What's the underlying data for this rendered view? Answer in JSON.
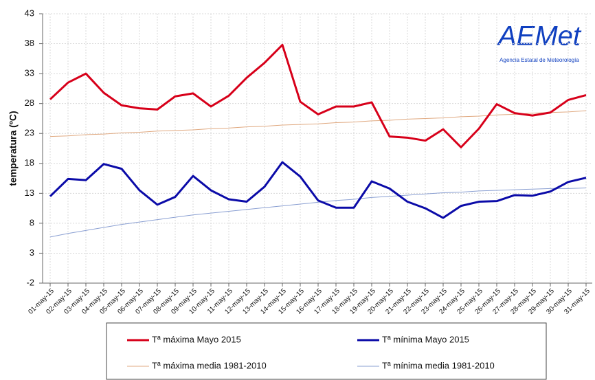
{
  "chart_data": {
    "type": "line",
    "y_label": "temperatura (ºC)",
    "logo_text": "AEMet",
    "logo_subtitle": "Agencia Estatal de Meteorología",
    "categories": [
      "01-may-15",
      "02-may-15",
      "03-may-15",
      "04-may-15",
      "05-may-15",
      "06-may-15",
      "07-may-15",
      "08-may-15",
      "09-may-15",
      "10-may-15",
      "11-may-15",
      "12-may-15",
      "13-may-15",
      "14-may-15",
      "15-may-15",
      "16-may-15",
      "17-may-15",
      "18-may-15",
      "19-may-15",
      "20-may-15",
      "21-may-15",
      "22-may-15",
      "23-may-15",
      "24-may-15",
      "25-may-15",
      "26-may-15",
      "27-may-15",
      "28-may-15",
      "29-may-15",
      "30-may-15",
      "31-may-15"
    ],
    "series": [
      {
        "name": "Tª máxima Mayo 2015",
        "color": "#d7001a",
        "line_width": 3,
        "values": [
          28.7,
          31.5,
          33,
          29.8,
          27.7,
          27.2,
          27,
          29.2,
          29.7,
          27.5,
          29.3,
          32.3,
          34.8,
          37.8,
          28.3,
          26.2,
          27.5,
          27.5,
          28.2,
          22.5,
          22.3,
          21.8,
          23.7,
          20.7,
          23.8,
          27.9,
          26.4,
          26,
          26.5,
          28.6,
          29.4
        ]
      },
      {
        "name": "Tª mínima Mayo 2015",
        "color": "#0b0ba8",
        "line_width": 3,
        "values": [
          12.5,
          15.4,
          15.2,
          17.9,
          17.1,
          13.5,
          11.1,
          12.4,
          15.9,
          13.5,
          12,
          11.6,
          14.1,
          18.2,
          15.8,
          11.8,
          10.6,
          10.6,
          15,
          13.8,
          11.6,
          10.5,
          8.9,
          10.9,
          11.6,
          11.7,
          12.7,
          12.6,
          13.3,
          14.9,
          15.6
        ]
      },
      {
        "name": "Tª máxima media 1981-2010",
        "color": "#e0a980",
        "line_width": 1,
        "values": [
          22.5,
          22.6,
          22.8,
          22.9,
          23.1,
          23.2,
          23.4,
          23.5,
          23.6,
          23.8,
          23.9,
          24.1,
          24.2,
          24.4,
          24.5,
          24.6,
          24.8,
          24.9,
          25.1,
          25.2,
          25.4,
          25.5,
          25.6,
          25.8,
          25.9,
          26.1,
          26.2,
          26.4,
          26.5,
          26.6,
          26.8
        ]
      },
      {
        "name": "Tª mínima media 1981-2010",
        "color": "#8a9fd2",
        "line_width": 1,
        "values": [
          5.7,
          6.3,
          6.8,
          7.3,
          7.8,
          8.2,
          8.6,
          9.0,
          9.4,
          9.7,
          10.0,
          10.3,
          10.6,
          10.9,
          11.2,
          11.5,
          11.8,
          12.0,
          12.3,
          12.5,
          12.7,
          12.9,
          13.1,
          13.2,
          13.4,
          13.5,
          13.6,
          13.7,
          13.8,
          13.8,
          13.9
        ]
      }
    ],
    "ylim": [
      -2,
      43
    ],
    "yticks": [
      -2,
      3,
      8,
      13,
      18,
      23,
      28,
      33,
      38,
      43
    ],
    "grid": true
  }
}
